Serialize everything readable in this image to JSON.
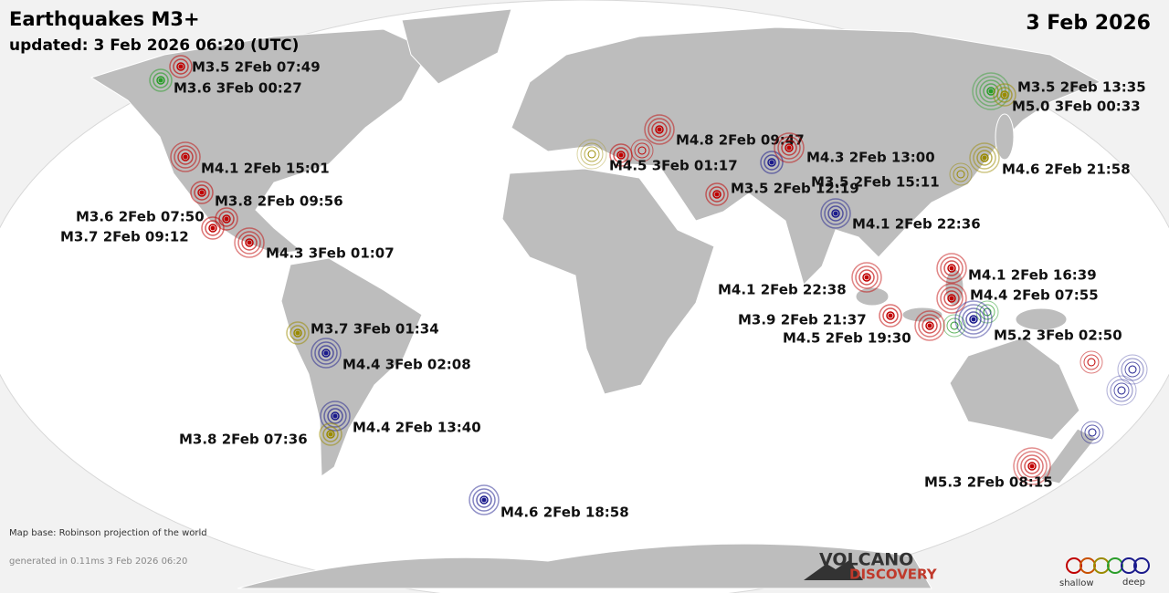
{
  "header": {
    "title": "Earthquakes M3+",
    "updated": "updated:  3 Feb 2026 06:20 (UTC)",
    "date": "3 Feb 2026"
  },
  "quakes": [
    {
      "label": "M3.5  2Feb 07:49",
      "color": "#c00000"
    },
    {
      "label": "M3.6  3Feb 00:27",
      "color": "#2a9d2a"
    },
    {
      "label": "M4.1  2Feb 15:01",
      "color": "#c00000"
    },
    {
      "label": "M3.8  2Feb 09:56",
      "color": "#c00000"
    },
    {
      "label": "M3.6  2Feb 07:50",
      "color": "#c00000"
    },
    {
      "label": "M3.7  2Feb 09:12",
      "color": "#c00000"
    },
    {
      "label": "M4.3  3Feb 01:07",
      "color": "#c00000"
    },
    {
      "label": "M3.7  3Feb 01:34",
      "color": "#9a8a00"
    },
    {
      "label": "M4.4  3Feb 02:08",
      "color": "#1a1a8c"
    },
    {
      "label": "M4.4  2Feb 13:40",
      "color": "#1a1a8c"
    },
    {
      "label": "M3.8  2Feb 07:36",
      "color": "#9a8a00"
    },
    {
      "label": "M4.6  2Feb 18:58",
      "color": "#1a1a8c"
    },
    {
      "label": "M4.8  2Feb 09:47",
      "color": "#c00000"
    },
    {
      "label": "M4.5  3Feb 01:17",
      "color": "#c00000"
    },
    {
      "label": "M4.3  2Feb 13:00",
      "color": "#1a1a8c"
    },
    {
      "label": "M3.5  2Feb 12:19",
      "color": "#c00000"
    },
    {
      "label": "M3.5  2Feb 15:11",
      "color": "#c00000"
    },
    {
      "label": "M4.1  2Feb 22:36",
      "color": "#1a1a8c"
    },
    {
      "label": "M3.5  2Feb 13:35",
      "color": "#2a9d2a"
    },
    {
      "label": "M5.0  3Feb 00:33",
      "color": "#9a8a00"
    },
    {
      "label": "M4.6  2Feb 21:58",
      "color": "#9a8a00"
    },
    {
      "label": "M4.1  2Feb 16:39",
      "color": "#c00000"
    },
    {
      "label": "M4.4  2Feb 07:55",
      "color": "#c00000"
    },
    {
      "label": "M4.1  2Feb 22:38",
      "color": "#c00000"
    },
    {
      "label": "M3.9  2Feb 21:37",
      "color": "#c00000"
    },
    {
      "label": "M4.5  2Feb 19:30",
      "color": "#c00000"
    },
    {
      "label": "M5.2  3Feb 02:50",
      "color": "#1a1a8c"
    },
    {
      "label": "M5.3  2Feb 08:15",
      "color": "#c00000"
    }
  ],
  "footer": {
    "map_base": "Map base: Robinson projection of the world",
    "generated": "generated in 0.11ms  3 Feb 2026 06:20"
  },
  "logo": {
    "line1": "VOLCANO",
    "line2": "DISCOVERY"
  },
  "legend": {
    "shallow": "shallow",
    "deep": "deep"
  }
}
